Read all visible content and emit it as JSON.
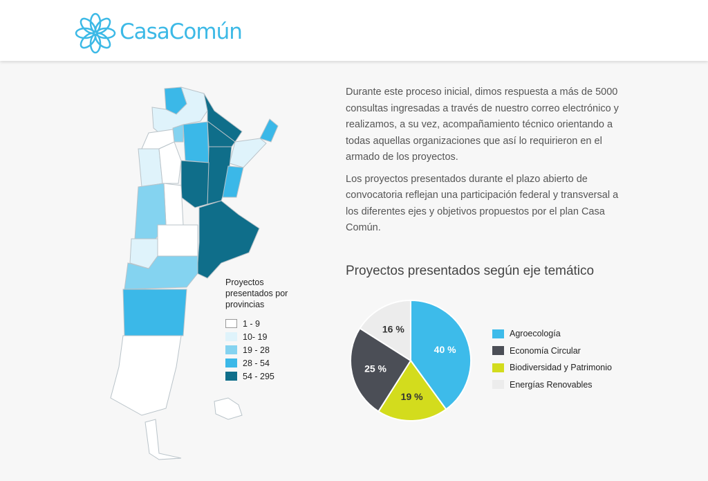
{
  "header": {
    "brand": "CasaComún",
    "logo_icon": "flower-icon"
  },
  "body": {
    "paragraphs": [
      "Durante este proceso inicial, dimos respuesta a más de 5000 consultas ingresadas a través de nuestro correo electrónico y realizamos, a su vez, acompañamiento técnico orientando a todas aquellas organizaciones que así lo requirieron en el armado de los proyectos.",
      "Los proyectos presentados durante el plazo abierto de convocatoria reflejan una participación federal y transversal a los diferentes ejes y objetivos propuestos por el plan Casa Común."
    ]
  },
  "map_legend": {
    "title": "Proyectos presentados por provincias",
    "items": [
      {
        "label": "1 - 9",
        "color": "#ffffff"
      },
      {
        "label": "10- 19",
        "color": "#dff3fb"
      },
      {
        "label": "19 - 28",
        "color": "#84d3f0"
      },
      {
        "label": "28 - 54",
        "color": "#3bb8e8"
      },
      {
        "label": "54 - 295",
        "color": "#0f6e8a"
      }
    ]
  },
  "chart_data": {
    "type": "pie",
    "title": "Proyectos presentados según eje temático",
    "legend": "right",
    "series": [
      {
        "name": "Agroecología",
        "value": 40,
        "label": "40 %",
        "color": "#3dbbea"
      },
      {
        "name": "Biodiversidad y Patrimonio",
        "value": 19,
        "label": "19 %",
        "color": "#d3dc1d"
      },
      {
        "name": "Economía Circular",
        "value": 25,
        "label": "25 %",
        "color": "#4b4e56"
      },
      {
        "name": "Energías Renovables",
        "value": 16,
        "label": "16 %",
        "color": "#ececec"
      }
    ],
    "legend_order": [
      "Agroecología",
      "Economía Circular",
      "Biodiversidad y Patrimonio",
      "Energías Renovables"
    ]
  }
}
